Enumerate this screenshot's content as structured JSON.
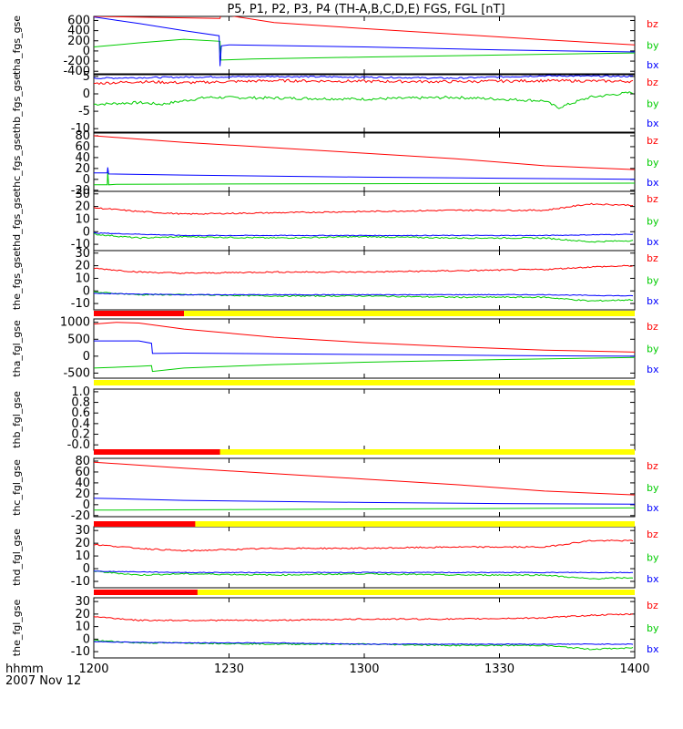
{
  "title": "P5, P1, P2, P3, P4 (TH-A,B,C,D,E) FGS, FGL [nT]",
  "footer": {
    "axis_label": "hhmm",
    "date_label": "2007 Nov 12"
  },
  "colors": {
    "bx": "#0000ff",
    "by": "#00cc00",
    "bz": "#ff0000",
    "bar_red": "#ff0000",
    "bar_yellow": "#ffff00"
  },
  "chart_data": {
    "type": "line",
    "x_ticks": [
      "1200",
      "1230",
      "1300",
      "1330",
      "1400"
    ],
    "x_tick_values": [
      0,
      30,
      60,
      90,
      120
    ],
    "xlim": [
      0,
      120
    ],
    "panels": [
      {
        "ylabel": "tha_fgs_gse",
        "ylim": [
          -450,
          680
        ],
        "yticks": [
          -400,
          -200,
          0,
          200,
          400,
          600
        ],
        "ytick_labels": [
          "-400",
          "-200",
          "0",
          "200",
          "400",
          "600"
        ],
        "legend": [
          "bz",
          "by",
          "bx"
        ],
        "noise": 0,
        "series": [
          {
            "name": "bz",
            "x": [
              0,
              28,
              28.2,
              40,
              60,
              80,
              100,
              120
            ],
            "y": [
              680,
              640,
              720,
              560,
              440,
              330,
              220,
              120
            ]
          },
          {
            "name": "by",
            "x": [
              0,
              10,
              20,
              28,
              28.2,
              35,
              60,
              90,
              120
            ],
            "y": [
              80,
              160,
              230,
              190,
              -180,
              -160,
              -120,
              -80,
              -40
            ]
          },
          {
            "name": "bx",
            "x": [
              0,
              10,
              20,
              27.8,
              28,
              28.3,
              30,
              60,
              90,
              120
            ],
            "y": [
              670,
              540,
              400,
              300,
              -300,
              100,
              120,
              80,
              20,
              -20
            ]
          }
        ]
      },
      {
        "ylabel": "thb_fgs_gse",
        "ylim": [
          -11,
          5.5
        ],
        "yticks": [
          -10,
          -5,
          0,
          5
        ],
        "ytick_labels": [
          "-10",
          "-5",
          "0",
          "5"
        ],
        "legend": [
          "bz",
          "by",
          "bx"
        ],
        "noise": 0.6,
        "series": [
          {
            "name": "bz",
            "x": [
              0,
              10,
              20,
              40,
              60,
              80,
              100,
              120
            ],
            "y": [
              3,
              3.5,
              3.2,
              3.8,
              3.6,
              3.5,
              3.8,
              3.6
            ]
          },
          {
            "name": "by",
            "x": [
              0,
              10,
              15,
              25,
              40,
              60,
              80,
              100,
              103,
              110,
              120
            ],
            "y": [
              -3,
              -2.5,
              -3,
              -1,
              -1.2,
              -1.5,
              -1,
              -2,
              -4,
              -1,
              0.5
            ]
          },
          {
            "name": "bx",
            "x": [
              0,
              20,
              40,
              60,
              80,
              100,
              120
            ],
            "y": [
              4.5,
              4.8,
              5,
              4.8,
              4.5,
              5.2,
              5
            ]
          }
        ]
      },
      {
        "ylabel": "thc_fgs_gse",
        "ylim": [
          -22,
          85
        ],
        "yticks": [
          -20,
          0,
          20,
          40,
          60,
          80
        ],
        "ytick_labels": [
          "-20",
          "0",
          "20",
          "40",
          "60",
          "80"
        ],
        "legend": [
          "bz",
          "by",
          "bx"
        ],
        "noise": 0,
        "series": [
          {
            "name": "bz",
            "x": [
              0,
              20,
              40,
              60,
              80,
              100,
              120
            ],
            "y": [
              80,
              68,
              58,
              48,
              38,
              25,
              18
            ]
          },
          {
            "name": "by",
            "x": [
              0,
              3,
              3.1,
              3.3,
              5,
              60,
              120
            ],
            "y": [
              -10,
              -10,
              15,
              -10,
              -9,
              -8,
              -7
            ]
          },
          {
            "name": "bx",
            "x": [
              0,
              3,
              3.1,
              3.3,
              20,
              60,
              90,
              120
            ],
            "y": [
              12,
              12,
              22,
              10,
              8,
              4,
              2,
              0
            ]
          }
        ]
      },
      {
        "ylabel": "thd_fgs_gse",
        "ylim": [
          -15,
          32
        ],
        "yticks": [
          -10,
          0,
          10,
          20,
          30
        ],
        "ytick_labels": [
          "-10",
          "0",
          "10",
          "20",
          "30"
        ],
        "legend": [
          "bz",
          "by",
          "bx"
        ],
        "noise": 0.8,
        "series": [
          {
            "name": "bz",
            "x": [
              0,
              10,
              20,
              40,
              60,
              80,
              100,
              110,
              120
            ],
            "y": [
              19,
              16,
              14,
              15,
              16,
              17,
              17,
              22,
              21
            ]
          },
          {
            "name": "by",
            "x": [
              0,
              10,
              20,
              40,
              60,
              80,
              100,
              110,
              120
            ],
            "y": [
              -2,
              -5,
              -4,
              -5,
              -4,
              -5,
              -5,
              -8,
              -7
            ]
          },
          {
            "name": "bx",
            "x": [
              0,
              20,
              40,
              60,
              80,
              100,
              120
            ],
            "y": [
              -1,
              -3,
              -3,
              -3,
              -3,
              -3,
              -2
            ]
          }
        ]
      },
      {
        "ylabel": "the_fgs_gse",
        "ylim": [
          -15,
          32
        ],
        "yticks": [
          -10,
          0,
          10,
          20,
          30
        ],
        "ytick_labels": [
          "-10",
          "0",
          "10",
          "20",
          "30"
        ],
        "legend": [
          "bz",
          "by",
          "bx"
        ],
        "noise": 0.8,
        "series": [
          {
            "name": "bz",
            "x": [
              0,
              10,
              20,
              40,
              60,
              80,
              100,
              110,
              120
            ],
            "y": [
              18,
              15,
              14,
              15,
              15,
              16,
              17,
              19,
              20
            ]
          },
          {
            "name": "by",
            "x": [
              0,
              10,
              20,
              40,
              60,
              80,
              100,
              110,
              120
            ],
            "y": [
              -1,
              -3,
              -3,
              -4,
              -4,
              -5,
              -5,
              -8,
              -7
            ]
          },
          {
            "name": "bx",
            "x": [
              0,
              20,
              40,
              60,
              80,
              100,
              120
            ],
            "y": [
              -2,
              -3,
              -3,
              -3,
              -3,
              -3,
              -4
            ]
          }
        ]
      },
      {
        "ylabel": "tha_fgl_gse",
        "ylim": [
          -650,
          1100
        ],
        "yticks": [
          -500,
          0,
          500,
          1000
        ],
        "ytick_labels": [
          "-500",
          "0",
          "500",
          "1000"
        ],
        "legend": [
          "bz",
          "by",
          "bx"
        ],
        "noise": 0,
        "series": [
          {
            "name": "bz",
            "x": [
              0,
              5,
              10,
              20,
              40,
              60,
              80,
              100,
              120
            ],
            "y": [
              950,
              1000,
              980,
              800,
              560,
              400,
              280,
              180,
              120
            ]
          },
          {
            "name": "by",
            "x": [
              0,
              10,
              12.8,
              13,
              20,
              40,
              60,
              90,
              120
            ],
            "y": [
              -350,
              -300,
              -280,
              -450,
              -350,
              -250,
              -180,
              -100,
              -40
            ]
          },
          {
            "name": "bx",
            "x": [
              0,
              10,
              12.8,
              13,
              20,
              40,
              60,
              90,
              120
            ],
            "y": [
              450,
              450,
              380,
              80,
              90,
              70,
              50,
              20,
              0
            ]
          }
        ]
      },
      {
        "ylabel": "thb_fgl_gse",
        "ylim": [
          -0.1,
          1.05
        ],
        "yticks": [
          -0.0,
          0.2,
          0.4,
          0.6,
          0.8,
          1.0
        ],
        "ytick_labels": [
          "-0.0",
          "0.2",
          "0.4",
          "0.6",
          "0.8",
          "1.0"
        ],
        "legend": [],
        "noise": 0,
        "series": []
      },
      {
        "ylabel": "thc_fgl_gse",
        "ylim": [
          -22,
          85
        ],
        "yticks": [
          -20,
          0,
          20,
          40,
          60,
          80
        ],
        "ytick_labels": [
          "-20",
          "0",
          "20",
          "40",
          "60",
          "80"
        ],
        "legend": [
          "bz",
          "by",
          "bx"
        ],
        "noise": 0,
        "series": [
          {
            "name": "bz",
            "x": [
              0,
              20,
              40,
              60,
              80,
              100,
              120
            ],
            "y": [
              78,
              67,
              57,
              47,
              37,
              25,
              18
            ]
          },
          {
            "name": "by",
            "x": [
              0,
              30,
              60,
              90,
              120
            ],
            "y": [
              -10,
              -9,
              -8,
              -7,
              -6
            ]
          },
          {
            "name": "bx",
            "x": [
              0,
              20,
              60,
              90,
              120
            ],
            "y": [
              12,
              8,
              4,
              2,
              1
            ]
          }
        ]
      },
      {
        "ylabel": "thd_fgl_gse",
        "ylim": [
          -15,
          33
        ],
        "yticks": [
          -10,
          0,
          10,
          20,
          30
        ],
        "ytick_labels": [
          "-10",
          "0",
          "10",
          "20",
          "30"
        ],
        "legend": [
          "bz",
          "by",
          "bx"
        ],
        "noise": 0.8,
        "series": [
          {
            "name": "bz",
            "x": [
              0,
              10,
              20,
              40,
              60,
              80,
              100,
              110,
              120
            ],
            "y": [
              19,
              16,
              14,
              16,
              16,
              17,
              17,
              22,
              22
            ]
          },
          {
            "name": "by",
            "x": [
              0,
              10,
              20,
              40,
              60,
              80,
              100,
              110,
              120
            ],
            "y": [
              -2,
              -5,
              -4,
              -5,
              -4,
              -5,
              -5,
              -8,
              -7
            ]
          },
          {
            "name": "bx",
            "x": [
              0,
              20,
              40,
              60,
              80,
              100,
              120
            ],
            "y": [
              -2,
              -3,
              -3,
              -3,
              -3,
              -3,
              -3
            ]
          }
        ]
      },
      {
        "ylabel": "the_fgl_gse",
        "ylim": [
          -15,
          33
        ],
        "yticks": [
          -10,
          0,
          10,
          20,
          30
        ],
        "ytick_labels": [
          "-10",
          "0",
          "10",
          "20",
          "30"
        ],
        "legend": [
          "bz",
          "by",
          "bx"
        ],
        "noise": 0.8,
        "series": [
          {
            "name": "bz",
            "x": [
              0,
              10,
              20,
              40,
              60,
              80,
              100,
              110,
              120
            ],
            "y": [
              18,
              15,
              15,
              15,
              16,
              16,
              17,
              19,
              20
            ]
          },
          {
            "name": "by",
            "x": [
              0,
              10,
              20,
              40,
              60,
              80,
              100,
              110,
              120
            ],
            "y": [
              -1,
              -3,
              -3,
              -4,
              -4,
              -5,
              -5,
              -8,
              -7
            ]
          },
          {
            "name": "bx",
            "x": [
              0,
              20,
              40,
              60,
              80,
              100,
              120
            ],
            "y": [
              -2,
              -3,
              -3,
              -4,
              -4,
              -4,
              -4
            ]
          }
        ]
      }
    ],
    "status_bars": [
      {
        "after_panel": 4,
        "red_until": 20
      },
      {
        "after_panel": 5,
        "red_until": 0
      },
      {
        "after_panel": 6,
        "red_until": 28
      },
      {
        "after_panel": 7,
        "red_until": 22.5
      },
      {
        "after_panel": 8,
        "red_until": 23
      }
    ]
  }
}
